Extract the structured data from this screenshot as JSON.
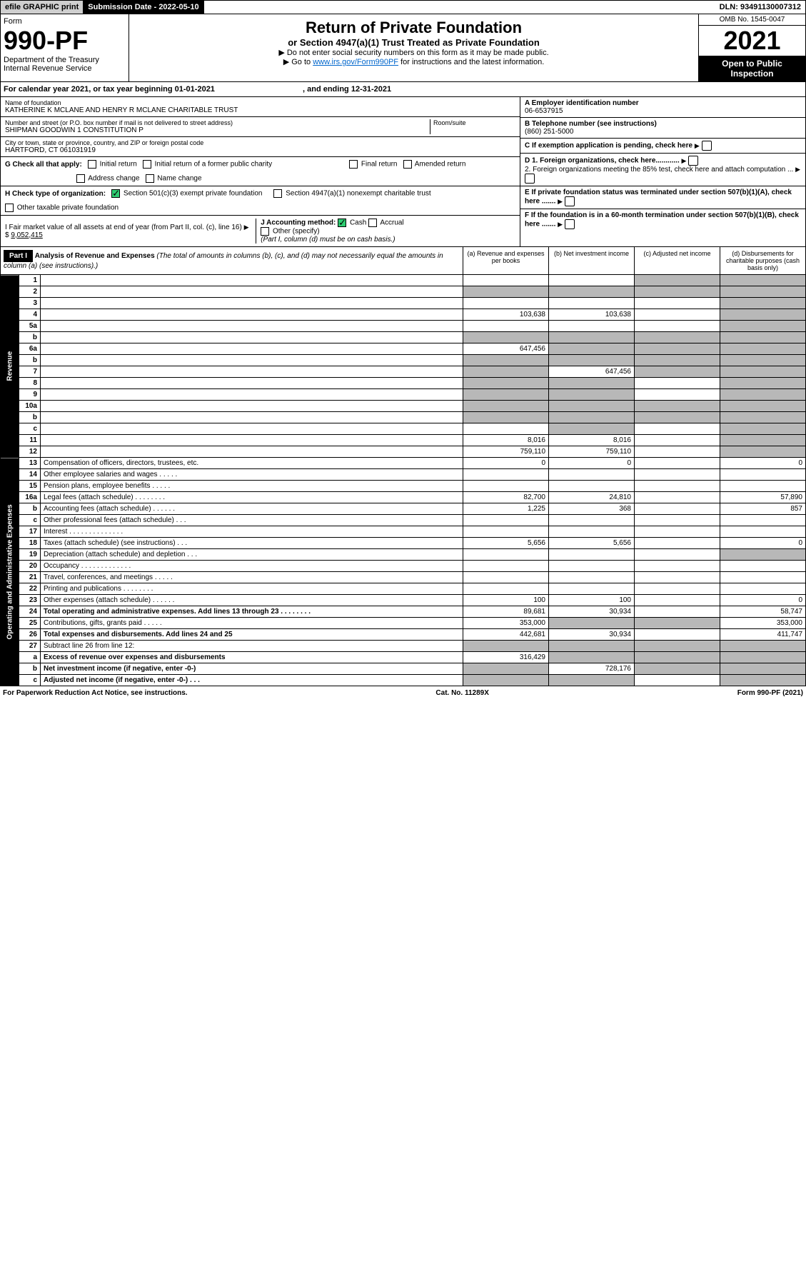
{
  "topbar": {
    "efile": "efile GRAPHIC print",
    "submission_label": "Submission Date - 2022-05-10",
    "dln": "DLN: 93491130007312"
  },
  "header": {
    "form_label": "Form",
    "form_number": "990-PF",
    "dept": "Department of the Treasury",
    "irs": "Internal Revenue Service",
    "title": "Return of Private Foundation",
    "subtitle": "or Section 4947(a)(1) Trust Treated as Private Foundation",
    "note1": "▶ Do not enter social security numbers on this form as it may be made public.",
    "note2_prefix": "▶ Go to ",
    "note2_link": "www.irs.gov/Form990PF",
    "note2_suffix": " for instructions and the latest information.",
    "omb": "OMB No. 1545-0047",
    "year": "2021",
    "open": "Open to Public Inspection"
  },
  "calendar": {
    "text_prefix": "For calendar year 2021, or tax year beginning ",
    "begin": "01-01-2021",
    "text_mid": " , and ending ",
    "end": "12-31-2021"
  },
  "info": {
    "name_label": "Name of foundation",
    "name": "KATHERINE K MCLANE AND HENRY R MCLANE CHARITABLE TRUST",
    "addr_label": "Number and street (or P.O. box number if mail is not delivered to street address)",
    "addr": "SHIPMAN GOODWIN 1 CONSTITUTION P",
    "room_label": "Room/suite",
    "city_label": "City or town, state or province, country, and ZIP or foreign postal code",
    "city": "HARTFORD, CT 061031919",
    "ein_label": "A Employer identification number",
    "ein": "06-6537915",
    "phone_label": "B Telephone number (see instructions)",
    "phone": "(860) 251-5000",
    "c_label": "C If exemption application is pending, check here",
    "d1": "D 1. Foreign organizations, check here............",
    "d2": "2. Foreign organizations meeting the 85% test, check here and attach computation ...",
    "e_label": "E If private foundation status was terminated under section 507(b)(1)(A), check here .......",
    "f_label": "F If the foundation is in a 60-month termination under section 507(b)(1)(B), check here ......."
  },
  "checks": {
    "g_label": "G Check all that apply:",
    "g_opts": [
      "Initial return",
      "Initial return of a former public charity",
      "Final return",
      "Amended return",
      "Address change",
      "Name change"
    ],
    "h_label": "H Check type of organization:",
    "h_opt1": "Section 501(c)(3) exempt private foundation",
    "h_opt2": "Section 4947(a)(1) nonexempt charitable trust",
    "h_opt3": "Other taxable private foundation",
    "i_label": "I Fair market value of all assets at end of year (from Part II, col. (c), line 16)",
    "i_val": "9,052,415",
    "j_label": "J Accounting method:",
    "j_cash": "Cash",
    "j_accrual": "Accrual",
    "j_other": "Other (specify)",
    "j_note": "(Part I, column (d) must be on cash basis.)"
  },
  "part1": {
    "label": "Part I",
    "title": "Analysis of Revenue and Expenses",
    "title_note": "(The total of amounts in columns (b), (c), and (d) may not necessarily equal the amounts in column (a) (see instructions).)",
    "col_a": "(a) Revenue and expenses per books",
    "col_b": "(b) Net investment income",
    "col_c": "(c) Adjusted net income",
    "col_d": "(d) Disbursements for charitable purposes (cash basis only)"
  },
  "sides": {
    "revenue": "Revenue",
    "opex": "Operating and Administrative Expenses"
  },
  "rows": [
    {
      "n": "1",
      "d": "",
      "a": "",
      "b": "",
      "c": "",
      "sh": [
        "c",
        "d"
      ]
    },
    {
      "n": "2",
      "d": "",
      "a": "",
      "b": "",
      "c": "",
      "sh": [
        "a",
        "b",
        "c",
        "d"
      ]
    },
    {
      "n": "3",
      "d": "",
      "a": "",
      "b": "",
      "c": "",
      "sh": [
        "d"
      ]
    },
    {
      "n": "4",
      "d": "",
      "a": "103,638",
      "b": "103,638",
      "c": "",
      "sh": [
        "d"
      ]
    },
    {
      "n": "5a",
      "d": "",
      "a": "",
      "b": "",
      "c": "",
      "sh": [
        "d"
      ]
    },
    {
      "n": "b",
      "d": "",
      "a": "",
      "b": "",
      "c": "",
      "sh": [
        "a",
        "b",
        "c",
        "d"
      ]
    },
    {
      "n": "6a",
      "d": "",
      "a": "647,456",
      "b": "",
      "c": "",
      "sh": [
        "b",
        "c",
        "d"
      ]
    },
    {
      "n": "b",
      "d": "",
      "a": "",
      "b": "",
      "c": "",
      "sh": [
        "a",
        "b",
        "c",
        "d"
      ]
    },
    {
      "n": "7",
      "d": "",
      "a": "",
      "b": "647,456",
      "c": "",
      "sh": [
        "a",
        "c",
        "d"
      ]
    },
    {
      "n": "8",
      "d": "",
      "a": "",
      "b": "",
      "c": "",
      "sh": [
        "a",
        "b",
        "d"
      ]
    },
    {
      "n": "9",
      "d": "",
      "a": "",
      "b": "",
      "c": "",
      "sh": [
        "a",
        "b",
        "d"
      ]
    },
    {
      "n": "10a",
      "d": "",
      "a": "",
      "b": "",
      "c": "",
      "sh": [
        "a",
        "b",
        "c",
        "d"
      ]
    },
    {
      "n": "b",
      "d": "",
      "a": "",
      "b": "",
      "c": "",
      "sh": [
        "a",
        "b",
        "c",
        "d"
      ]
    },
    {
      "n": "c",
      "d": "",
      "a": "",
      "b": "",
      "c": "",
      "sh": [
        "b",
        "d"
      ]
    },
    {
      "n": "11",
      "d": "",
      "a": "8,016",
      "b": "8,016",
      "c": "",
      "sh": [
        "d"
      ]
    },
    {
      "n": "12",
      "d": "",
      "a": "759,110",
      "b": "759,110",
      "c": "",
      "sh": [
        "d"
      ],
      "bold": true
    }
  ],
  "oprows": [
    {
      "n": "13",
      "d": "Compensation of officers, directors, trustees, etc.",
      "a": "0",
      "b": "0",
      "c": "",
      "dval": "0"
    },
    {
      "n": "14",
      "d": "Other employee salaries and wages  . . . . .",
      "a": "",
      "b": "",
      "c": "",
      "dval": ""
    },
    {
      "n": "15",
      "d": "Pension plans, employee benefits  . . . . .",
      "a": "",
      "b": "",
      "c": "",
      "dval": ""
    },
    {
      "n": "16a",
      "d": "Legal fees (attach schedule)  . . . . . . . .",
      "a": "82,700",
      "b": "24,810",
      "c": "",
      "dval": "57,890"
    },
    {
      "n": "b",
      "d": "Accounting fees (attach schedule)  . . . . . .",
      "a": "1,225",
      "b": "368",
      "c": "",
      "dval": "857"
    },
    {
      "n": "c",
      "d": "Other professional fees (attach schedule)  . . .",
      "a": "",
      "b": "",
      "c": "",
      "dval": ""
    },
    {
      "n": "17",
      "d": "Interest  . . . . . . . . . . . . . .",
      "a": "",
      "b": "",
      "c": "",
      "dval": ""
    },
    {
      "n": "18",
      "d": "Taxes (attach schedule) (see instructions)  . . .",
      "a": "5,656",
      "b": "5,656",
      "c": "",
      "dval": "0"
    },
    {
      "n": "19",
      "d": "Depreciation (attach schedule) and depletion  . . .",
      "a": "",
      "b": "",
      "c": "",
      "dval": "",
      "sh": [
        "d"
      ]
    },
    {
      "n": "20",
      "d": "Occupancy  . . . . . . . . . . . . .",
      "a": "",
      "b": "",
      "c": "",
      "dval": ""
    },
    {
      "n": "21",
      "d": "Travel, conferences, and meetings  . . . . .",
      "a": "",
      "b": "",
      "c": "",
      "dval": ""
    },
    {
      "n": "22",
      "d": "Printing and publications  . . . . . . . .",
      "a": "",
      "b": "",
      "c": "",
      "dval": ""
    },
    {
      "n": "23",
      "d": "Other expenses (attach schedule)  . . . . . .",
      "a": "100",
      "b": "100",
      "c": "",
      "dval": "0"
    },
    {
      "n": "24",
      "d": "Total operating and administrative expenses. Add lines 13 through 23  . . . . . . . .",
      "a": "89,681",
      "b": "30,934",
      "c": "",
      "dval": "58,747",
      "bold": true
    },
    {
      "n": "25",
      "d": "Contributions, gifts, grants paid  . . . . .",
      "a": "353,000",
      "b": "",
      "c": "",
      "dval": "353,000",
      "sh": [
        "b",
        "c"
      ]
    },
    {
      "n": "26",
      "d": "Total expenses and disbursements. Add lines 24 and 25",
      "a": "442,681",
      "b": "30,934",
      "c": "",
      "dval": "411,747",
      "bold": true
    },
    {
      "n": "27",
      "d": "Subtract line 26 from line 12:",
      "a": "",
      "b": "",
      "c": "",
      "dval": "",
      "sh": [
        "a",
        "b",
        "c",
        "d"
      ]
    },
    {
      "n": "a",
      "d": "Excess of revenue over expenses and disbursements",
      "a": "316,429",
      "b": "",
      "c": "",
      "dval": "",
      "bold": true,
      "sh": [
        "b",
        "c",
        "d"
      ]
    },
    {
      "n": "b",
      "d": "Net investment income (if negative, enter -0-)",
      "a": "",
      "b": "728,176",
      "c": "",
      "dval": "",
      "bold": true,
      "sh": [
        "a",
        "c",
        "d"
      ]
    },
    {
      "n": "c",
      "d": "Adjusted net income (if negative, enter -0-)  . . .",
      "a": "",
      "b": "",
      "c": "",
      "dval": "",
      "bold": true,
      "sh": [
        "a",
        "b",
        "d"
      ]
    }
  ],
  "footer": {
    "left": "For Paperwork Reduction Act Notice, see instructions.",
    "mid": "Cat. No. 11289X",
    "right": "Form 990-PF (2021)"
  },
  "colors": {
    "shade": "#b8b8b8",
    "green": "#2ecc71",
    "link": "#0066cc"
  }
}
